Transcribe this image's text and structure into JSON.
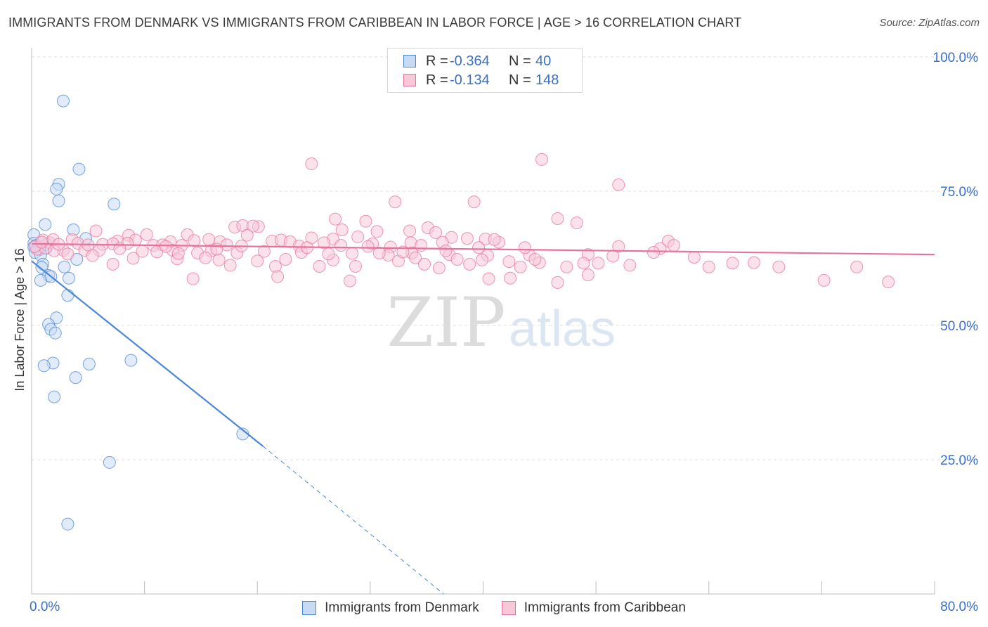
{
  "title": "IMMIGRANTS FROM DENMARK VS IMMIGRANTS FROM CARIBBEAN IN LABOR FORCE | AGE > 16 CORRELATION CHART",
  "source": "Source: ZipAtlas.com",
  "watermark": {
    "zip": "ZIP",
    "atlas": "atlas"
  },
  "colors": {
    "blue": "#4a86d8",
    "blue_fill": "#c8daf4",
    "pink": "#e8739a",
    "pink_fill": "#f7c9d8",
    "axis_label": "#3a6fc4",
    "grid": "#dddddd"
  },
  "legend": {
    "rows": [
      {
        "r_label": "R =",
        "r_value": "-0.364",
        "n_label": "N =",
        "n_value": "40"
      },
      {
        "r_label": "R =",
        "r_value": "-0.134",
        "n_label": "N =",
        "n_value": "148"
      }
    ]
  },
  "chart_data": {
    "type": "scatter",
    "title": "IMMIGRANTS FROM DENMARK VS IMMIGRANTS FROM CARIBBEAN IN LABOR FORCE | AGE > 16 CORRELATION CHART",
    "xlabel": "",
    "ylabel": "In Labor Force | Age > 16",
    "xlim": [
      0,
      80
    ],
    "ylim": [
      0,
      102
    ],
    "x_tick_labels": [
      "0.0%",
      "80.0%"
    ],
    "y_ticks": [
      25,
      50,
      75,
      100
    ],
    "y_tick_labels": [
      "25.0%",
      "50.0%",
      "75.0%",
      "100.0%"
    ],
    "grid": true,
    "legend_position": "top-center",
    "series": [
      {
        "name": "Immigrants from Denmark",
        "color": "#4a86d8",
        "r": -0.364,
        "n": 40,
        "trend": {
          "x": [
            0,
            20.5
          ],
          "y": [
            62,
            27.5
          ],
          "dashed_to": [
            36.5,
            0
          ]
        },
        "points": [
          [
            2.8,
            91.8
          ],
          [
            4.2,
            79.1
          ],
          [
            2.4,
            76.3
          ],
          [
            2.2,
            75.4
          ],
          [
            2.4,
            73.2
          ],
          [
            7.3,
            72.6
          ],
          [
            1.2,
            68.8
          ],
          [
            3.7,
            67.8
          ],
          [
            0.2,
            66.9
          ],
          [
            4.8,
            66.2
          ],
          [
            0.2,
            65.3
          ],
          [
            1.3,
            65.1
          ],
          [
            0.4,
            64.9
          ],
          [
            0.2,
            64.6
          ],
          [
            1.3,
            64.4
          ],
          [
            0.7,
            64.1
          ],
          [
            0.3,
            63.6
          ],
          [
            0.8,
            63.1
          ],
          [
            4.0,
            62.3
          ],
          [
            1.0,
            61.4
          ],
          [
            0.9,
            60.8
          ],
          [
            2.9,
            60.9
          ],
          [
            1.5,
            59.3
          ],
          [
            1.7,
            59.1
          ],
          [
            3.3,
            58.8
          ],
          [
            0.8,
            58.4
          ],
          [
            3.2,
            55.6
          ],
          [
            2.2,
            51.4
          ],
          [
            1.5,
            50.2
          ],
          [
            1.7,
            49.3
          ],
          [
            2.1,
            48.6
          ],
          [
            8.8,
            43.5
          ],
          [
            1.9,
            43.0
          ],
          [
            5.1,
            42.8
          ],
          [
            1.1,
            42.5
          ],
          [
            3.9,
            40.3
          ],
          [
            2.0,
            36.7
          ],
          [
            18.7,
            29.8
          ],
          [
            6.9,
            24.5
          ],
          [
            3.2,
            13.0
          ]
        ]
      },
      {
        "name": "Immigrants from Caribbean",
        "color": "#e8739a",
        "r": -0.134,
        "n": 148,
        "trend": {
          "x": [
            0,
            80
          ],
          "y": [
            65.2,
            63.2
          ]
        },
        "points": [
          [
            45.2,
            80.9
          ],
          [
            24.8,
            80.1
          ],
          [
            52.0,
            76.2
          ],
          [
            32.2,
            73.0
          ],
          [
            39.2,
            73.0
          ],
          [
            46.6,
            69.9
          ],
          [
            26.9,
            69.8
          ],
          [
            29.6,
            69.4
          ],
          [
            48.3,
            69.1
          ],
          [
            18.0,
            68.3
          ],
          [
            18.7,
            68.6
          ],
          [
            20.1,
            68.4
          ],
          [
            19.6,
            68.5
          ],
          [
            27.5,
            67.8
          ],
          [
            35.1,
            68.2
          ],
          [
            30.6,
            67.5
          ],
          [
            33.5,
            67.6
          ],
          [
            35.8,
            67.3
          ],
          [
            5.7,
            67.6
          ],
          [
            8.6,
            66.8
          ],
          [
            10.2,
            66.9
          ],
          [
            13.8,
            66.9
          ],
          [
            19.1,
            66.8
          ],
          [
            24.8,
            66.3
          ],
          [
            26.7,
            66.1
          ],
          [
            28.9,
            66.5
          ],
          [
            37.2,
            66.4
          ],
          [
            38.6,
            66.2
          ],
          [
            40.2,
            66.1
          ],
          [
            3.6,
            66.0
          ],
          [
            7.6,
            65.7
          ],
          [
            9.2,
            65.9
          ],
          [
            12.3,
            65.6
          ],
          [
            14.4,
            65.8
          ],
          [
            15.7,
            66.0
          ],
          [
            16.7,
            65.6
          ],
          [
            21.3,
            65.7
          ],
          [
            22.1,
            65.9
          ],
          [
            22.9,
            65.6
          ],
          [
            25.9,
            65.4
          ],
          [
            30.2,
            65.2
          ],
          [
            33.6,
            65.4
          ],
          [
            36.4,
            65.5
          ],
          [
            41.4,
            65.5
          ],
          [
            56.4,
            65.7
          ],
          [
            1.6,
            65.4
          ],
          [
            4.1,
            65.3
          ],
          [
            6.3,
            65.1
          ],
          [
            7.2,
            65.2
          ],
          [
            8.5,
            65.3
          ],
          [
            10.8,
            64.9
          ],
          [
            11.6,
            65.0
          ],
          [
            13.3,
            64.9
          ],
          [
            17.3,
            65.0
          ],
          [
            23.7,
            64.8
          ],
          [
            27.4,
            64.9
          ],
          [
            29.8,
            64.7
          ],
          [
            31.8,
            64.6
          ],
          [
            34.5,
            64.9
          ],
          [
            39.6,
            64.5
          ],
          [
            52.0,
            64.7
          ],
          [
            55.7,
            64.3
          ],
          [
            0.5,
            64.2
          ],
          [
            1.2,
            64.4
          ],
          [
            2.8,
            64.0
          ],
          [
            4.7,
            64.0
          ],
          [
            6.0,
            64.0
          ],
          [
            9.8,
            63.8
          ],
          [
            11.1,
            63.7
          ],
          [
            12.5,
            64.0
          ],
          [
            14.7,
            63.5
          ],
          [
            15.9,
            63.9
          ],
          [
            18.2,
            63.5
          ],
          [
            20.6,
            63.8
          ],
          [
            23.9,
            63.6
          ],
          [
            28.4,
            63.4
          ],
          [
            31.6,
            63.1
          ],
          [
            33.7,
            63.5
          ],
          [
            37.0,
            63.2
          ],
          [
            40.4,
            63.0
          ],
          [
            44.1,
            63.1
          ],
          [
            49.3,
            63.2
          ],
          [
            55.1,
            63.6
          ],
          [
            3.2,
            63.3
          ],
          [
            5.4,
            63.0
          ],
          [
            9.0,
            62.5
          ],
          [
            12.9,
            62.4
          ],
          [
            15.4,
            62.6
          ],
          [
            16.6,
            62.2
          ],
          [
            20.0,
            62.0
          ],
          [
            22.5,
            62.3
          ],
          [
            26.7,
            62.2
          ],
          [
            32.5,
            62.0
          ],
          [
            37.7,
            62.3
          ],
          [
            39.9,
            62.2
          ],
          [
            42.3,
            61.9
          ],
          [
            45.0,
            61.7
          ],
          [
            48.9,
            61.6
          ],
          [
            50.2,
            61.6
          ],
          [
            53.0,
            61.2
          ],
          [
            62.1,
            61.6
          ],
          [
            7.2,
            61.4
          ],
          [
            17.6,
            61.2
          ],
          [
            21.6,
            61.0
          ],
          [
            25.5,
            61.0
          ],
          [
            28.7,
            61.0
          ],
          [
            34.8,
            61.4
          ],
          [
            38.8,
            61.4
          ],
          [
            43.3,
            60.9
          ],
          [
            47.4,
            60.9
          ],
          [
            60.0,
            60.9
          ],
          [
            66.2,
            60.9
          ],
          [
            14.3,
            58.7
          ],
          [
            21.8,
            59.1
          ],
          [
            28.2,
            58.3
          ],
          [
            40.5,
            58.7
          ],
          [
            42.4,
            58.8
          ],
          [
            46.6,
            58.0
          ],
          [
            49.3,
            59.4
          ],
          [
            70.2,
            58.4
          ],
          [
            75.9,
            58.1
          ],
          [
            32.9,
            63.7
          ],
          [
            36.1,
            60.7
          ],
          [
            41.0,
            66.0
          ],
          [
            1.0,
            65.9
          ],
          [
            0.3,
            64.7
          ],
          [
            2.0,
            63.9
          ],
          [
            0.9,
            65.5
          ],
          [
            1.9,
            66.0
          ],
          [
            2.4,
            65.1
          ],
          [
            5.0,
            65.0
          ],
          [
            7.8,
            64.3
          ],
          [
            11.9,
            64.7
          ],
          [
            13.0,
            63.4
          ],
          [
            16.4,
            64.2
          ],
          [
            18.6,
            64.8
          ],
          [
            24.4,
            64.5
          ],
          [
            26.3,
            63.3
          ],
          [
            30.8,
            63.5
          ],
          [
            34.0,
            62.6
          ],
          [
            36.7,
            63.9
          ],
          [
            44.6,
            62.3
          ],
          [
            43.7,
            64.5
          ],
          [
            51.5,
            62.9
          ],
          [
            58.7,
            62.7
          ],
          [
            73.1,
            60.9
          ],
          [
            64.0,
            61.7
          ],
          [
            56.9,
            64.9
          ]
        ]
      }
    ]
  },
  "bottom_legend": [
    {
      "label": "Immigrants from Denmark",
      "color": "#4a86d8"
    },
    {
      "label": "Immigrants from Caribbean",
      "color": "#e8739a"
    }
  ]
}
